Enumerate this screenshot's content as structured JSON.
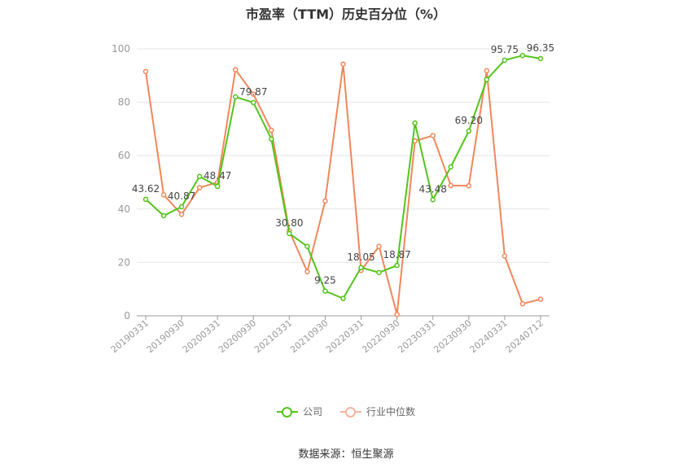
{
  "title": "市盈率（TTM）历史百分位（%）",
  "source": "数据来源：恒生聚源",
  "colors": {
    "company": "#52c41a",
    "industry": "#f0875a",
    "grid": "#e6e6e6",
    "axis": "#999999",
    "text": "#999999"
  },
  "chart_data": {
    "type": "line",
    "title": "市盈率（TTM）历史百分位（%）",
    "ylim": [
      0,
      100
    ],
    "yticks": [
      0,
      20,
      40,
      60,
      80,
      100
    ],
    "grid": true,
    "legend_placement": "bottom",
    "x": [
      "20190331",
      "20190630",
      "20190930",
      "20191231",
      "20200331",
      "20200630",
      "20200930",
      "20201231",
      "20210331",
      "20210630",
      "20210930",
      "20211231",
      "20220331",
      "20220630",
      "20220930",
      "20221231",
      "20230331",
      "20230630",
      "20230930",
      "20231231",
      "20240331",
      "20240630",
      "20240712"
    ],
    "x_tick_labels": [
      "20190331",
      "20190930",
      "20200331",
      "20200930",
      "20210331",
      "20210930",
      "20220331",
      "20220930",
      "20230331",
      "20230930",
      "20240331",
      "20240712"
    ],
    "series": [
      {
        "name": "公司",
        "color": "#52c41a",
        "values": [
          43.62,
          37.5,
          40.87,
          52.2,
          48.47,
          82.0,
          79.87,
          66.2,
          30.8,
          26.0,
          9.25,
          6.5,
          18.05,
          16.2,
          18.87,
          72.2,
          43.48,
          55.8,
          69.2,
          88.5,
          95.75,
          97.5,
          96.35
        ]
      },
      {
        "name": "行业中位数",
        "color": "#f0875a",
        "values": [
          91.5,
          45.3,
          38.0,
          48.0,
          50.0,
          92.2,
          83.0,
          69.5,
          31.8,
          16.5,
          43.0,
          94.3,
          17.0,
          26.0,
          0.5,
          65.5,
          67.5,
          48.8,
          48.7,
          91.8,
          22.4,
          4.5,
          6.2
        ]
      }
    ],
    "data_labels": [
      {
        "series": 0,
        "index": 0,
        "text": "43.62"
      },
      {
        "series": 0,
        "index": 2,
        "text": "40.87"
      },
      {
        "series": 0,
        "index": 4,
        "text": "48.47"
      },
      {
        "series": 0,
        "index": 6,
        "text": "79.87"
      },
      {
        "series": 0,
        "index": 8,
        "text": "30.80"
      },
      {
        "series": 0,
        "index": 10,
        "text": "9.25"
      },
      {
        "series": 0,
        "index": 12,
        "text": "18.05"
      },
      {
        "series": 0,
        "index": 14,
        "text": "18.87"
      },
      {
        "series": 0,
        "index": 16,
        "text": "43.48"
      },
      {
        "series": 0,
        "index": 18,
        "text": "69.20"
      },
      {
        "series": 0,
        "index": 20,
        "text": "95.75"
      },
      {
        "series": 0,
        "index": 22,
        "text": "96.35"
      }
    ]
  }
}
